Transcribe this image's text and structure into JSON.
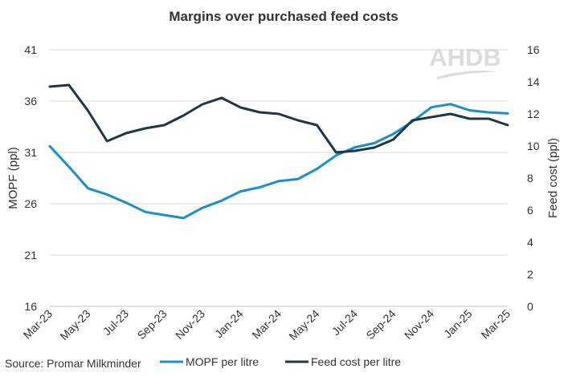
{
  "chart_data": {
    "type": "line",
    "title": "Margins over purchased feed costs",
    "source": "Source: Promar Milkminder",
    "watermark": "AHDB",
    "ylabel": "MOPF (ppl)",
    "y2label": "Feed cost (ppl)",
    "ylim": [
      16,
      41
    ],
    "y2lim": [
      0,
      16
    ],
    "yticks": [
      16,
      21,
      26,
      31,
      36,
      41
    ],
    "y2ticks": [
      0,
      2,
      4,
      6,
      8,
      10,
      12,
      14,
      16
    ],
    "grid": true,
    "legend_position": "bottom",
    "x_labels": [
      "Mar-23",
      "Apr-23",
      "May-23",
      "Jun-23",
      "Jul-23",
      "Aug-23",
      "Sep-23",
      "Oct-23",
      "Nov-23",
      "Dec-23",
      "Jan-24",
      "Feb-24",
      "Mar-24",
      "Apr-24",
      "May-24",
      "Jun-24",
      "Jul-24",
      "Aug-24",
      "Sep-24",
      "Oct-24",
      "Nov-24",
      "Dec-24",
      "Jan-25",
      "Feb-25",
      "Mar-25"
    ],
    "tick_labels": [
      "Mar-23",
      "May-23",
      "Jul-23",
      "Sep-23",
      "Nov-23",
      "Jan-24",
      "Mar-24",
      "May-24",
      "Jul-24",
      "Sep-24",
      "Nov-24",
      "Jan-25",
      "Mar-25"
    ],
    "series": [
      {
        "name": "MOPF per litre",
        "axis": "left",
        "color": "#1a8fd0",
        "values": [
          31.6,
          29.6,
          27.5,
          26.9,
          26.1,
          25.2,
          24.9,
          24.6,
          25.6,
          26.3,
          27.2,
          27.6,
          28.2,
          28.4,
          29.4,
          30.7,
          31.5,
          31.9,
          32.8,
          34.0,
          35.4,
          35.7,
          35.1,
          34.9,
          34.8
        ]
      },
      {
        "name": "Feed cost per litre",
        "axis": "right",
        "color": "#1c3847",
        "values": [
          13.7,
          13.8,
          12.2,
          10.3,
          10.8,
          11.1,
          11.3,
          11.9,
          12.6,
          13.0,
          12.4,
          12.1,
          12.0,
          11.6,
          11.3,
          9.6,
          9.7,
          9.9,
          10.4,
          11.6,
          11.8,
          12.0,
          11.7,
          11.7,
          11.3
        ]
      }
    ]
  }
}
